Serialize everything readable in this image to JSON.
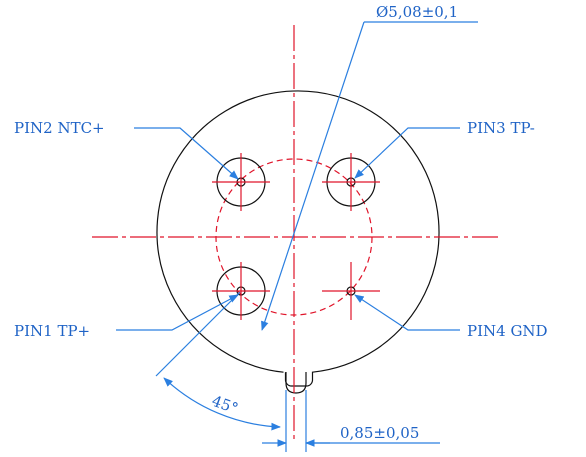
{
  "labels": {
    "diameter": "Ø5,08±0,1",
    "pin2": "PIN2 NTC+",
    "pin3": "PIN3 TP-",
    "pin1": "PIN1 TP+",
    "pin4": "PIN4 GND",
    "angle": "45°",
    "key_width": "0,85±0,05"
  },
  "colors": {
    "outline": "#111111",
    "centerline": "#e0142a",
    "dimension": "#2b7fe0",
    "text": "#1f63c6"
  }
}
